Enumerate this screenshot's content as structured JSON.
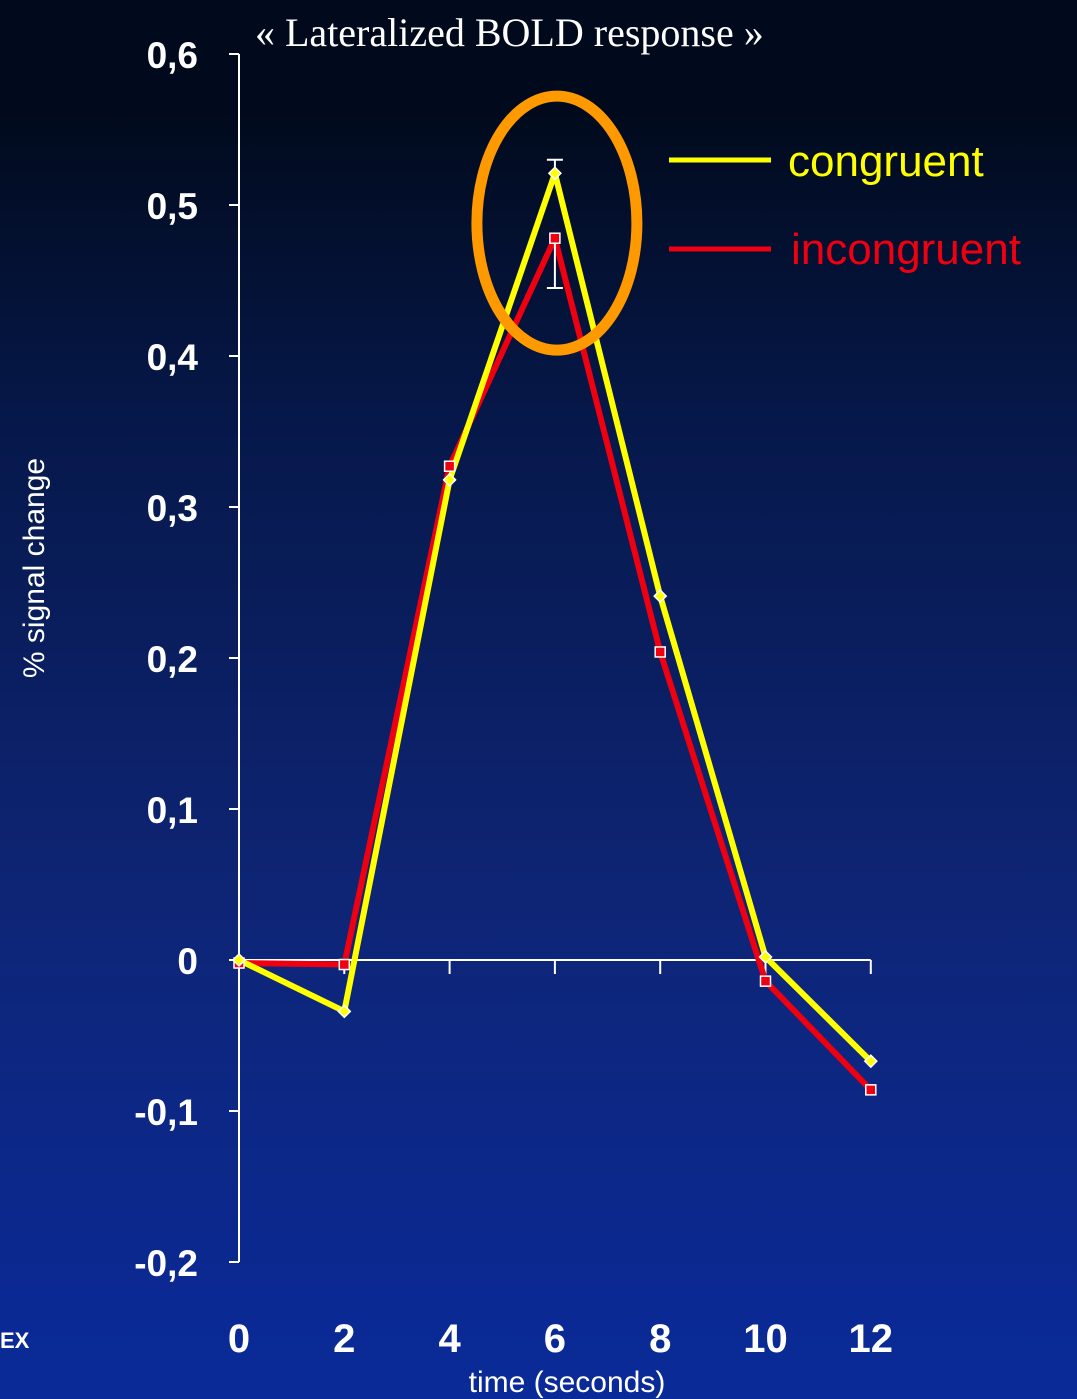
{
  "chart_data": {
    "type": "line",
    "title": "«  Lateralized BOLD response »",
    "xlabel": "time (seconds)",
    "ylabel": "% signal change",
    "x": [
      0,
      2,
      4,
      6,
      8,
      10,
      12
    ],
    "x_tick_labels": [
      "0",
      "2",
      "4",
      "6",
      "8",
      "10",
      "12"
    ],
    "y_tick_labels": [
      "0,6",
      "0,5",
      "0,4",
      "0,3",
      "0,2",
      "0,1",
      "0",
      "-0,1",
      "-0,2"
    ],
    "ylim": [
      -0.2,
      0.6
    ],
    "grid": false,
    "legend_position": "top-right",
    "series": [
      {
        "name": "congruent",
        "color": "#ffff00",
        "marker": "diamond",
        "values": [
          0.0,
          -0.034,
          0.318,
          0.521,
          0.241,
          0.002,
          -0.067
        ],
        "error_bar": {
          "x": 6,
          "upper": 0.53
        }
      },
      {
        "name": "incongruent",
        "color": "#ee0011",
        "marker": "square",
        "values": [
          -0.002,
          -0.003,
          0.327,
          0.478,
          0.204,
          -0.014,
          -0.086
        ],
        "error_bar": {
          "x": 6,
          "lower": 0.445
        }
      }
    ],
    "highlight": {
      "shape": "ellipse",
      "x": 6,
      "color": "#ff9900"
    }
  },
  "corner_text": "EX"
}
